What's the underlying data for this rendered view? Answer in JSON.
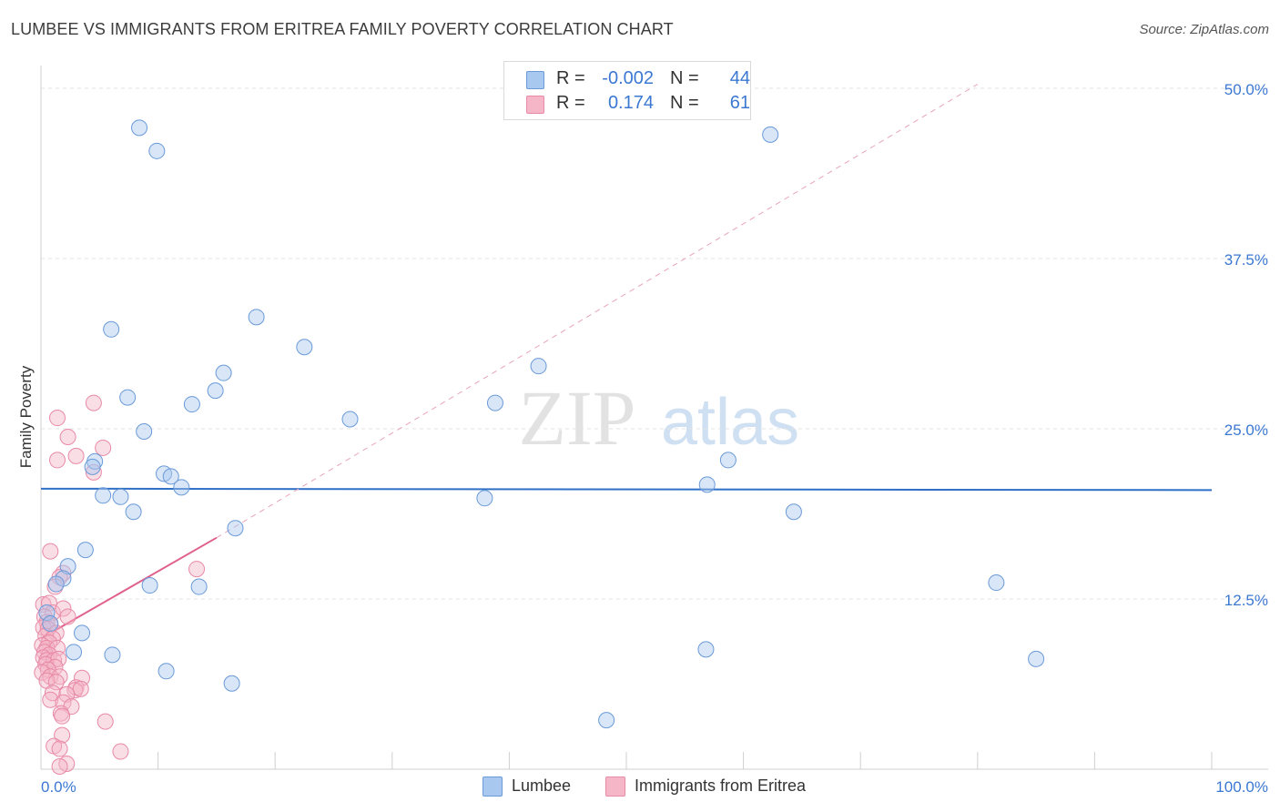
{
  "header": {
    "title": "LUMBEE VS IMMIGRANTS FROM ERITREA FAMILY POVERTY CORRELATION CHART",
    "source": "Source: ZipAtlas.com"
  },
  "watermark": {
    "part1": "ZIP",
    "part2": "atlas"
  },
  "legend_box": {
    "rows": [
      {
        "r_label": "R =",
        "r_value": "-0.002",
        "n_label": "N =",
        "n_value": "44",
        "color": "#a8c8f0"
      },
      {
        "r_label": "R =",
        "r_value": "0.174",
        "n_label": "N =",
        "n_value": "61",
        "color": "#f5b6c8"
      }
    ]
  },
  "bottom_legend": [
    {
      "label": "Lumbee",
      "color": "#a8c8f0"
    },
    {
      "label": "Immigrants from Eritrea",
      "color": "#f5b6c8"
    }
  ],
  "colors": {
    "lumbee_fill": "#a8c8f0",
    "lumbee_stroke": "#6a9ad8",
    "lumbee_line": "#2f6fc6",
    "eritrea_fill": "#f5b6c8",
    "eritrea_stroke": "#e889a6",
    "eritrea_line": "#e0608d",
    "axis_text": "#3b78d2"
  },
  "chart_data": {
    "type": "scatter",
    "title": "LUMBEE VS IMMIGRANTS FROM ERITREA FAMILY POVERTY CORRELATION CHART",
    "xlabel": "",
    "ylabel": "Family Poverty",
    "xlim": [
      0,
      100
    ],
    "ylim": [
      0,
      51
    ],
    "x_tick_labels": [
      {
        "value": 0,
        "label": "0.0%"
      },
      {
        "value": 100,
        "label": "100.0%"
      }
    ],
    "y_tick_labels": [
      {
        "value": 12.5,
        "label": "12.5%"
      },
      {
        "value": 25,
        "label": "25.0%"
      },
      {
        "value": 37.5,
        "label": "37.5%"
      },
      {
        "value": 50,
        "label": "50.0%"
      }
    ],
    "grid": true,
    "legend_position": "bottom",
    "series": [
      {
        "name": "Lumbee",
        "color": "#a8c8f0",
        "trend": {
          "x": [
            0,
            100
          ],
          "y": [
            20.6,
            20.5
          ],
          "style": "solid"
        },
        "points": [
          [
            8.4,
            47.1
          ],
          [
            9.9,
            45.4
          ],
          [
            6.0,
            32.3
          ],
          [
            18.4,
            33.2
          ],
          [
            22.5,
            31.0
          ],
          [
            15.6,
            29.1
          ],
          [
            14.9,
            27.8
          ],
          [
            12.9,
            26.8
          ],
          [
            7.4,
            27.3
          ],
          [
            26.4,
            25.7
          ],
          [
            38.8,
            26.9
          ],
          [
            42.5,
            29.6
          ],
          [
            62.3,
            46.6
          ],
          [
            8.8,
            24.8
          ],
          [
            4.6,
            22.6
          ],
          [
            4.4,
            22.2
          ],
          [
            10.5,
            21.7
          ],
          [
            11.1,
            21.5
          ],
          [
            12.0,
            20.7
          ],
          [
            5.3,
            20.1
          ],
          [
            6.8,
            20.0
          ],
          [
            7.9,
            18.9
          ],
          [
            37.9,
            19.9
          ],
          [
            56.9,
            20.9
          ],
          [
            58.7,
            22.7
          ],
          [
            64.3,
            18.9
          ],
          [
            16.6,
            17.7
          ],
          [
            3.8,
            16.1
          ],
          [
            2.3,
            14.9
          ],
          [
            1.9,
            14.0
          ],
          [
            1.3,
            13.6
          ],
          [
            9.3,
            13.5
          ],
          [
            13.5,
            13.4
          ],
          [
            0.5,
            11.5
          ],
          [
            81.6,
            13.7
          ],
          [
            0.8,
            10.7
          ],
          [
            3.5,
            10.0
          ],
          [
            2.8,
            8.6
          ],
          [
            6.1,
            8.4
          ],
          [
            56.8,
            8.8
          ],
          [
            85.0,
            8.1
          ],
          [
            10.7,
            7.2
          ],
          [
            16.3,
            6.3
          ],
          [
            48.3,
            3.6
          ]
        ]
      },
      {
        "name": "Immigrants from Eritrea",
        "color": "#f5b6c8",
        "trend": {
          "x": [
            0,
            15
          ],
          "y": [
            9.6,
            17.0
          ],
          "extended_x": [
            15,
            80
          ],
          "extended_y": [
            17.0,
            50.3
          ],
          "style": "solid-then-dashed"
        },
        "points": [
          [
            4.5,
            26.9
          ],
          [
            1.4,
            25.8
          ],
          [
            2.3,
            24.4
          ],
          [
            5.3,
            23.6
          ],
          [
            3.0,
            23.0
          ],
          [
            1.4,
            22.7
          ],
          [
            4.5,
            21.8
          ],
          [
            0.8,
            16.0
          ],
          [
            1.9,
            14.4
          ],
          [
            13.3,
            14.7
          ],
          [
            1.6,
            14.1
          ],
          [
            1.2,
            13.4
          ],
          [
            0.2,
            12.1
          ],
          [
            0.7,
            12.2
          ],
          [
            1.0,
            11.5
          ],
          [
            1.9,
            11.8
          ],
          [
            2.3,
            11.2
          ],
          [
            0.3,
            11.2
          ],
          [
            0.5,
            10.8
          ],
          [
            0.8,
            10.6
          ],
          [
            0.2,
            10.4
          ],
          [
            0.6,
            10.3
          ],
          [
            1.3,
            10.0
          ],
          [
            0.4,
            9.8
          ],
          [
            1.0,
            9.6
          ],
          [
            0.7,
            9.3
          ],
          [
            0.1,
            9.1
          ],
          [
            0.5,
            8.9
          ],
          [
            1.4,
            8.9
          ],
          [
            0.3,
            8.6
          ],
          [
            0.7,
            8.4
          ],
          [
            0.2,
            8.2
          ],
          [
            0.5,
            8.0
          ],
          [
            1.1,
            8.0
          ],
          [
            1.5,
            8.1
          ],
          [
            0.4,
            7.7
          ],
          [
            1.2,
            7.5
          ],
          [
            0.6,
            7.3
          ],
          [
            0.1,
            7.1
          ],
          [
            0.8,
            6.8
          ],
          [
            1.6,
            6.8
          ],
          [
            3.5,
            6.7
          ],
          [
            0.5,
            6.5
          ],
          [
            1.3,
            6.4
          ],
          [
            3.0,
            6.0
          ],
          [
            2.9,
            5.8
          ],
          [
            3.4,
            5.9
          ],
          [
            1.0,
            5.6
          ],
          [
            2.2,
            5.5
          ],
          [
            0.8,
            5.1
          ],
          [
            1.9,
            4.9
          ],
          [
            2.6,
            4.6
          ],
          [
            1.7,
            4.1
          ],
          [
            1.8,
            3.9
          ],
          [
            5.5,
            3.5
          ],
          [
            1.8,
            2.5
          ],
          [
            1.1,
            1.7
          ],
          [
            1.6,
            1.5
          ],
          [
            6.8,
            1.3
          ],
          [
            2.2,
            0.4
          ],
          [
            1.6,
            0.2
          ]
        ]
      }
    ]
  }
}
